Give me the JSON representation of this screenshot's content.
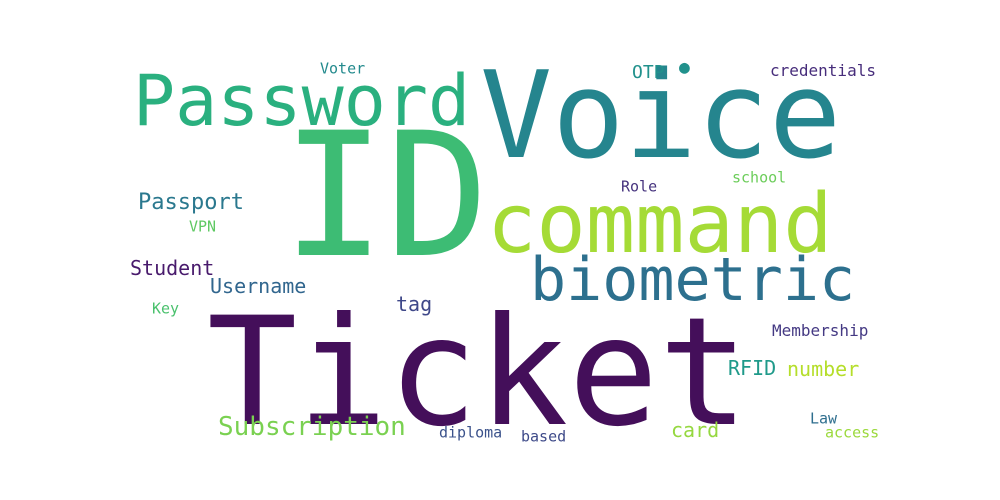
{
  "words": [
    {
      "text": "ID",
      "color": "#3dbc74"
    },
    {
      "text": "Voice",
      "color": "#25858e"
    },
    {
      "text": "Ticket",
      "color": "#440f5a"
    },
    {
      "text": "command",
      "color": "#a5db36"
    },
    {
      "text": "Password",
      "color": "#2ab07f"
    },
    {
      "text": "biometric",
      "color": "#2d708e"
    },
    {
      "text": "Subscription",
      "color": "#7ad151"
    },
    {
      "text": "Passport",
      "color": "#2a788e"
    },
    {
      "text": "Student",
      "color": "#481a6c"
    },
    {
      "text": "Username",
      "color": "#31668e"
    },
    {
      "text": "number",
      "color": "#b5de2b"
    },
    {
      "text": "card",
      "color": "#95d840"
    },
    {
      "text": "RFID",
      "color": "#1f9a8a"
    },
    {
      "text": "OTP",
      "color": "#21918c"
    },
    {
      "text": "tag",
      "color": "#3f4889"
    },
    {
      "text": "credentials",
      "color": "#472d7b"
    },
    {
      "text": "Membership",
      "color": "#443983"
    },
    {
      "text": "Voter",
      "color": "#238a8d"
    },
    {
      "text": "Role",
      "color": "#46337e"
    },
    {
      "text": "school",
      "color": "#6ccd5a"
    },
    {
      "text": "VPN",
      "color": "#5ec962"
    },
    {
      "text": "Key",
      "color": "#4ac16d"
    },
    {
      "text": "diploma",
      "color": "#3b528b"
    },
    {
      "text": "based",
      "color": "#3e4a89"
    },
    {
      "text": "Law",
      "color": "#2e6e8e"
    },
    {
      "text": "access",
      "color": "#9bd93c"
    },
    {
      "text": "●",
      "color": "#21918c"
    }
  ]
}
